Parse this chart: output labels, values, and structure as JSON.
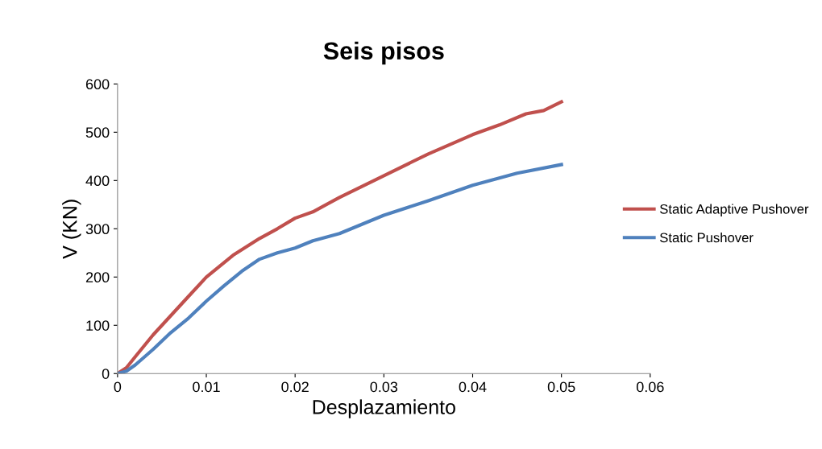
{
  "chart_data": {
    "type": "line",
    "title": "Seis pisos",
    "xlabel": "Desplazamiento",
    "ylabel": "V (KN)",
    "xlim": [
      0,
      0.06
    ],
    "xticks": [
      0,
      0.01,
      0.02,
      0.03,
      0.04,
      0.05,
      0.06
    ],
    "ylim": [
      0,
      600
    ],
    "yticks": [
      0,
      100,
      200,
      300,
      400,
      500,
      600
    ],
    "grid": false,
    "legend": "right",
    "marker": "none",
    "line_style": "solid",
    "series": [
      {
        "name": "Static Adaptive Pushover",
        "color": "#c0504d",
        "x": [
          0,
          0.001,
          0.002,
          0.004,
          0.006,
          0.008,
          0.01,
          0.013,
          0.016,
          0.018,
          0.02,
          0.022,
          0.025,
          0.03,
          0.035,
          0.04,
          0.043,
          0.046,
          0.048,
          0.05
        ],
        "values": [
          0,
          12,
          35,
          80,
          120,
          160,
          200,
          245,
          280,
          300,
          322,
          335,
          365,
          410,
          455,
          495,
          515,
          538,
          545,
          563
        ]
      },
      {
        "name": "Static Pushover",
        "color": "#4f81bd",
        "x": [
          0,
          0.001,
          0.002,
          0.004,
          0.006,
          0.008,
          0.01,
          0.012,
          0.014,
          0.016,
          0.018,
          0.02,
          0.022,
          0.025,
          0.03,
          0.035,
          0.04,
          0.045,
          0.05
        ],
        "values": [
          0,
          5,
          18,
          50,
          85,
          115,
          150,
          182,
          212,
          237,
          250,
          260,
          275,
          290,
          328,
          358,
          390,
          415,
          433
        ]
      }
    ]
  }
}
